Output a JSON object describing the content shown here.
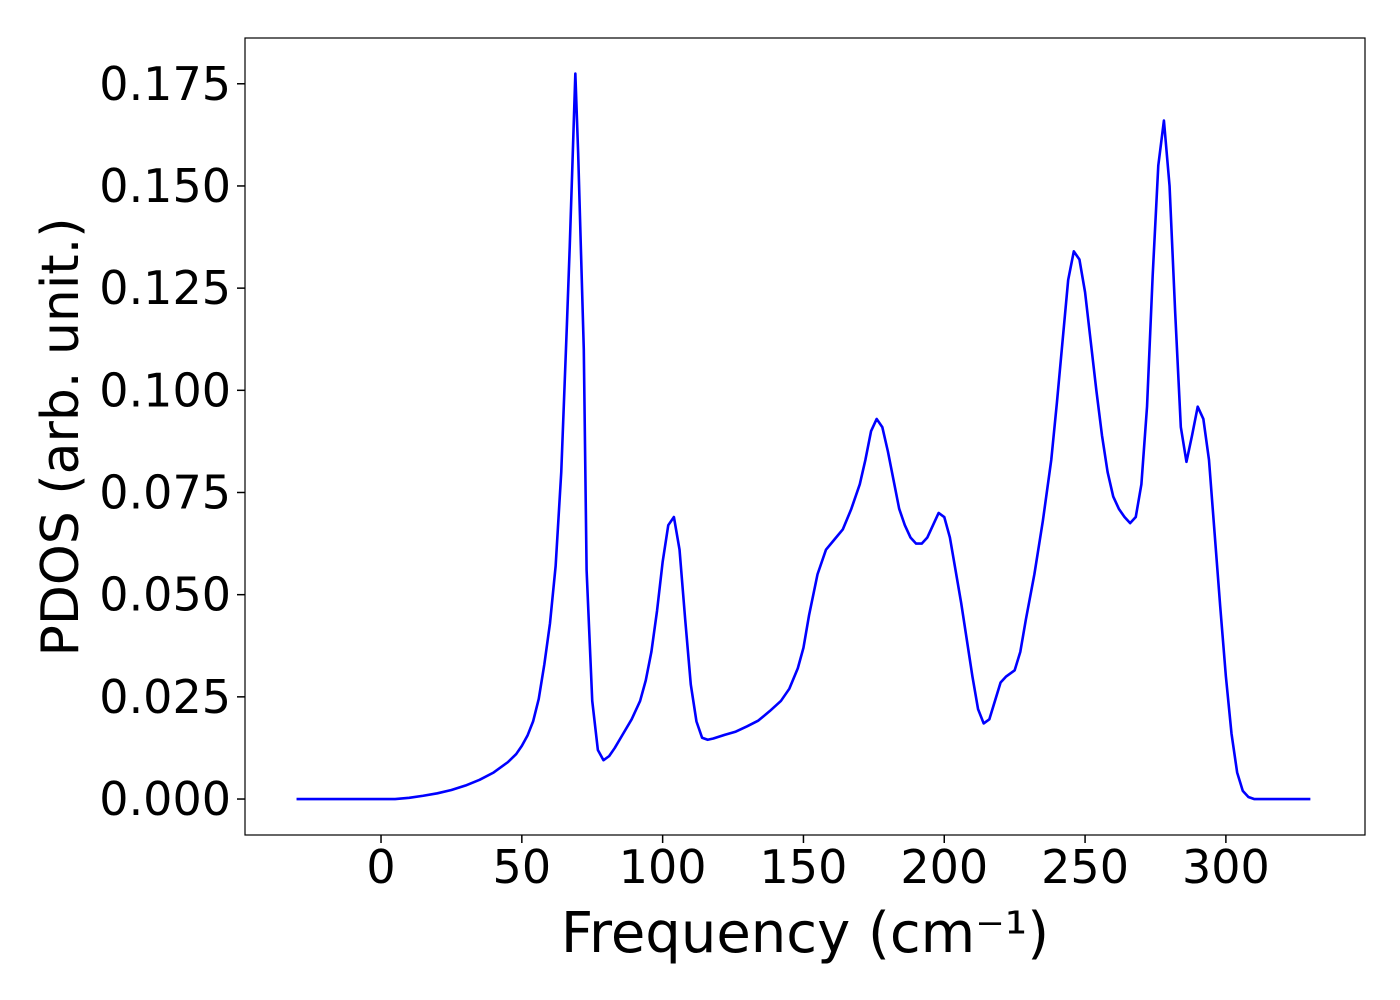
{
  "chart_data": {
    "type": "line",
    "x_label": "Frequency (cm⁻¹)",
    "y_label": "PDOS (arb. unit.)",
    "x": [
      -30,
      -20,
      -10,
      0,
      5,
      10,
      15,
      20,
      25,
      30,
      35,
      40,
      45,
      48,
      50,
      52,
      54,
      56,
      58,
      60,
      62,
      64,
      66,
      67,
      68,
      69,
      70,
      72,
      73,
      75,
      77,
      79,
      81,
      83,
      86,
      89,
      92,
      94,
      96,
      98,
      100,
      102,
      104,
      106,
      108,
      110,
      112,
      114,
      116,
      118,
      122,
      126,
      130,
      134,
      138,
      142,
      145,
      148,
      150,
      152,
      155,
      158,
      161,
      164,
      167,
      170,
      172,
      174,
      176,
      178,
      180,
      182,
      184,
      186,
      188,
      190,
      192,
      194,
      196,
      198,
      200,
      202,
      204,
      206,
      208,
      210,
      212,
      214,
      216,
      218,
      220,
      222,
      225,
      227,
      229,
      232,
      235,
      238,
      240,
      242,
      244,
      246,
      248,
      250,
      252,
      254,
      256,
      258,
      260,
      262,
      264,
      266,
      268,
      270,
      272,
      274,
      276,
      278,
      280,
      282,
      284,
      286,
      288,
      290,
      292,
      294,
      296,
      298,
      300,
      302,
      304,
      306,
      308,
      310,
      320,
      330
    ],
    "series": [
      {
        "name": "PDOS",
        "color": "#0000ff",
        "values": [
          0,
          0,
          0,
          0,
          0,
          0.0003,
          0.0008,
          0.0014,
          0.0022,
          0.0033,
          0.0047,
          0.0065,
          0.009,
          0.011,
          0.013,
          0.0155,
          0.019,
          0.0245,
          0.033,
          0.043,
          0.057,
          0.08,
          0.116,
          0.135,
          0.156,
          0.1775,
          0.158,
          0.11,
          0.056,
          0.024,
          0.012,
          0.0095,
          0.0105,
          0.0125,
          0.016,
          0.0195,
          0.024,
          0.029,
          0.036,
          0.046,
          0.058,
          0.067,
          0.069,
          0.061,
          0.044,
          0.028,
          0.019,
          0.015,
          0.0145,
          0.0148,
          0.0157,
          0.0165,
          0.0178,
          0.0192,
          0.0215,
          0.024,
          0.027,
          0.032,
          0.037,
          0.045,
          0.055,
          0.061,
          0.0635,
          0.066,
          0.071,
          0.077,
          0.083,
          0.09,
          0.093,
          0.091,
          0.085,
          0.078,
          0.071,
          0.067,
          0.064,
          0.0625,
          0.0625,
          0.064,
          0.067,
          0.07,
          0.069,
          0.064,
          0.056,
          0.048,
          0.039,
          0.03,
          0.022,
          0.0185,
          0.0195,
          0.024,
          0.0285,
          0.03,
          0.0315,
          0.036,
          0.044,
          0.055,
          0.068,
          0.083,
          0.097,
          0.112,
          0.127,
          0.134,
          0.132,
          0.124,
          0.112,
          0.1,
          0.089,
          0.08,
          0.074,
          0.071,
          0.069,
          0.0675,
          0.069,
          0.077,
          0.096,
          0.128,
          0.155,
          0.166,
          0.15,
          0.119,
          0.091,
          0.0825,
          0.089,
          0.096,
          0.093,
          0.083,
          0.065,
          0.047,
          0.03,
          0.016,
          0.0065,
          0.002,
          0.0005,
          0,
          0,
          0
        ]
      }
    ],
    "xlim": [
      -48.3,
      349.4
    ],
    "ylim": [
      -0.0088,
      0.1862
    ],
    "xticks": [
      0,
      50,
      100,
      150,
      200,
      250,
      300
    ],
    "yticks": [
      {
        "value": 0,
        "label": "0.000"
      },
      0.025,
      {
        "value": 0.05,
        "label": "0.050"
      },
      0.075,
      {
        "value": 0.1,
        "label": "0.100"
      },
      0.125,
      {
        "value": 0.15,
        "label": "0.150"
      },
      0.175
    ]
  }
}
